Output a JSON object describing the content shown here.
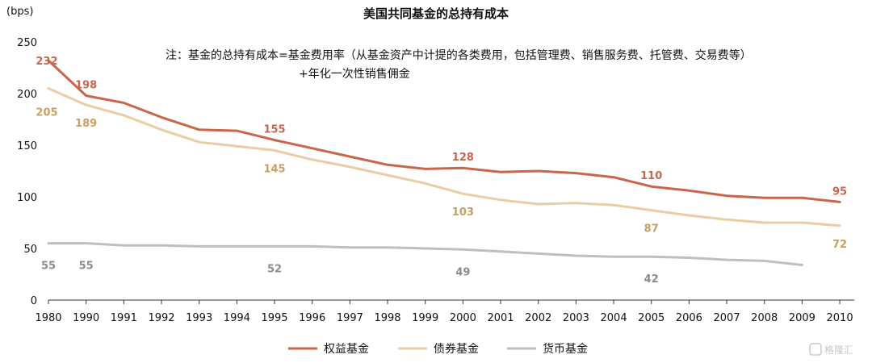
{
  "chart_data": {
    "type": "line",
    "title": "美国共同基金的总持有成本",
    "unit_label": "(bps)",
    "note_line1": "注：基金的总持有成本=基金费用率（从基金资产中计提的各类费用，包括管理费、销售服务费、托管费、交易费等）",
    "note_line2": "+年化一次性销售佣金",
    "categories": [
      "1980",
      "1990",
      "1991",
      "1992",
      "1993",
      "1994",
      "1995",
      "1996",
      "1997",
      "1998",
      "1999",
      "2000",
      "2001",
      "2002",
      "2003",
      "2004",
      "2005",
      "2006",
      "2007",
      "2008",
      "2009",
      "2010"
    ],
    "ylim": [
      0,
      250
    ],
    "yticks": [
      0,
      50,
      100,
      150,
      200,
      250
    ],
    "grid": false,
    "legend_position": "bottom",
    "series": [
      {
        "name": "权益基金",
        "color": "#C8654A",
        "values": [
          232,
          198,
          191,
          177,
          165,
          164,
          155,
          147,
          139,
          131,
          127,
          128,
          124,
          125,
          123,
          119,
          110,
          106,
          101,
          99,
          99,
          95
        ],
        "labeled_indices": [
          0,
          1,
          6,
          11,
          16,
          21
        ]
      },
      {
        "name": "债券基金",
        "color": "#E9CDA4",
        "label_color": "#C99F60",
        "values": [
          205,
          189,
          179,
          165,
          153,
          149,
          145,
          136,
          129,
          121,
          113,
          103,
          97,
          93,
          94,
          92,
          87,
          82,
          78,
          75,
          75,
          72
        ],
        "labeled_indices": [
          0,
          1,
          6,
          11,
          16,
          21
        ]
      },
      {
        "name": "货币基金",
        "color": "#BFBFBF",
        "label_color": "#8C8C8C",
        "values": [
          55,
          55,
          53,
          53,
          52,
          52,
          52,
          52,
          51,
          51,
          50,
          49,
          47,
          45,
          43,
          42,
          42,
          41,
          39,
          38,
          34,
          null
        ],
        "labeled_indices": [
          0,
          1,
          6,
          11,
          16
        ]
      }
    ]
  },
  "watermark": "格隆汇"
}
